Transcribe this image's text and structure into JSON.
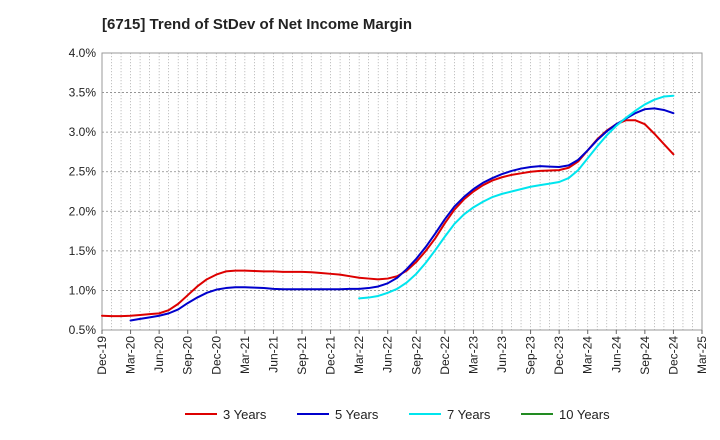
{
  "chart_data": {
    "type": "line",
    "title": "[6715]  Trend of StDev of Net Income Margin",
    "xlabel": "",
    "ylabel": "",
    "x_ticks": [
      "Dec-19",
      "Mar-20",
      "Jun-20",
      "Sep-20",
      "Dec-20",
      "Mar-21",
      "Jun-21",
      "Sep-21",
      "Dec-21",
      "Mar-22",
      "Jun-22",
      "Sep-22",
      "Dec-22",
      "Mar-23",
      "Jun-23",
      "Sep-23",
      "Dec-23",
      "Mar-24",
      "Jun-24",
      "Sep-24",
      "Dec-24",
      "Mar-25"
    ],
    "y_ticks": [
      "0.5%",
      "1.0%",
      "1.5%",
      "2.0%",
      "2.5%",
      "3.0%",
      "3.5%",
      "4.0%"
    ],
    "ylim": [
      0.5,
      4.0
    ],
    "y_unit": "%",
    "grid": true,
    "legend_position": "bottom",
    "series": [
      {
        "name": "3 Years",
        "color": "#dd0000",
        "points": [
          [
            "Dec-19",
            0.68
          ],
          [
            "Jan-20",
            0.675
          ],
          [
            "Feb-20",
            0.675
          ],
          [
            "Mar-20",
            0.68
          ],
          [
            "Apr-20",
            0.69
          ],
          [
            "May-20",
            0.7
          ],
          [
            "Jun-20",
            0.71
          ],
          [
            "Jul-20",
            0.75
          ],
          [
            "Aug-20",
            0.83
          ],
          [
            "Sep-20",
            0.94
          ],
          [
            "Oct-20",
            1.05
          ],
          [
            "Nov-20",
            1.14
          ],
          [
            "Dec-20",
            1.2
          ],
          [
            "Jan-21",
            1.24
          ],
          [
            "Feb-21",
            1.25
          ],
          [
            "Mar-21",
            1.25
          ],
          [
            "Apr-21",
            1.245
          ],
          [
            "May-21",
            1.24
          ],
          [
            "Jun-21",
            1.24
          ],
          [
            "Jul-21",
            1.235
          ],
          [
            "Aug-21",
            1.235
          ],
          [
            "Sep-21",
            1.235
          ],
          [
            "Oct-21",
            1.23
          ],
          [
            "Nov-21",
            1.22
          ],
          [
            "Dec-21",
            1.21
          ],
          [
            "Jan-22",
            1.2
          ],
          [
            "Feb-22",
            1.18
          ],
          [
            "Mar-22",
            1.16
          ],
          [
            "Apr-22",
            1.15
          ],
          [
            "May-22",
            1.14
          ],
          [
            "Jun-22",
            1.15
          ],
          [
            "Jul-22",
            1.18
          ],
          [
            "Aug-22",
            1.25
          ],
          [
            "Sep-22",
            1.36
          ],
          [
            "Oct-22",
            1.5
          ],
          [
            "Nov-22",
            1.66
          ],
          [
            "Dec-22",
            1.85
          ],
          [
            "Jan-23",
            2.02
          ],
          [
            "Feb-23",
            2.15
          ],
          [
            "Mar-23",
            2.25
          ],
          [
            "Apr-23",
            2.33
          ],
          [
            "May-23",
            2.39
          ],
          [
            "Jun-23",
            2.43
          ],
          [
            "Jul-23",
            2.46
          ],
          [
            "Aug-23",
            2.48
          ],
          [
            "Sep-23",
            2.5
          ],
          [
            "Oct-23",
            2.51
          ],
          [
            "Nov-23",
            2.515
          ],
          [
            "Dec-23",
            2.52
          ],
          [
            "Jan-24",
            2.55
          ],
          [
            "Feb-24",
            2.63
          ],
          [
            "Mar-24",
            2.77
          ],
          [
            "Apr-24",
            2.91
          ],
          [
            "May-24",
            3.02
          ],
          [
            "Jun-24",
            3.1
          ],
          [
            "Jul-24",
            3.15
          ],
          [
            "Aug-24",
            3.15
          ],
          [
            "Sep-24",
            3.1
          ],
          [
            "Oct-24",
            2.98
          ],
          [
            "Nov-24",
            2.85
          ],
          [
            "Dec-24",
            2.72
          ]
        ]
      },
      {
        "name": "5 Years",
        "color": "#0000cc",
        "points": [
          [
            "Mar-20",
            0.62
          ],
          [
            "Apr-20",
            0.64
          ],
          [
            "May-20",
            0.66
          ],
          [
            "Jun-20",
            0.68
          ],
          [
            "Jul-20",
            0.71
          ],
          [
            "Aug-20",
            0.76
          ],
          [
            "Sep-20",
            0.84
          ],
          [
            "Oct-20",
            0.91
          ],
          [
            "Nov-20",
            0.97
          ],
          [
            "Dec-20",
            1.01
          ],
          [
            "Jan-21",
            1.03
          ],
          [
            "Feb-21",
            1.04
          ],
          [
            "Mar-21",
            1.04
          ],
          [
            "Apr-21",
            1.035
          ],
          [
            "May-21",
            1.03
          ],
          [
            "Jun-21",
            1.02
          ],
          [
            "Jul-21",
            1.015
          ],
          [
            "Aug-21",
            1.015
          ],
          [
            "Sep-21",
            1.015
          ],
          [
            "Oct-21",
            1.015
          ],
          [
            "Nov-21",
            1.015
          ],
          [
            "Dec-21",
            1.015
          ],
          [
            "Jan-22",
            1.015
          ],
          [
            "Feb-22",
            1.02
          ],
          [
            "Mar-22",
            1.02
          ],
          [
            "Apr-22",
            1.03
          ],
          [
            "May-22",
            1.05
          ],
          [
            "Jun-22",
            1.09
          ],
          [
            "Jul-22",
            1.16
          ],
          [
            "Aug-22",
            1.27
          ],
          [
            "Sep-22",
            1.4
          ],
          [
            "Oct-22",
            1.55
          ],
          [
            "Nov-22",
            1.72
          ],
          [
            "Dec-22",
            1.9
          ],
          [
            "Jan-23",
            2.06
          ],
          [
            "Feb-23",
            2.18
          ],
          [
            "Mar-23",
            2.28
          ],
          [
            "Apr-23",
            2.36
          ],
          [
            "May-23",
            2.42
          ],
          [
            "Jun-23",
            2.47
          ],
          [
            "Jul-23",
            2.51
          ],
          [
            "Aug-23",
            2.54
          ],
          [
            "Sep-23",
            2.56
          ],
          [
            "Oct-23",
            2.57
          ],
          [
            "Nov-23",
            2.565
          ],
          [
            "Dec-23",
            2.56
          ],
          [
            "Jan-24",
            2.58
          ],
          [
            "Feb-24",
            2.65
          ],
          [
            "Mar-24",
            2.77
          ],
          [
            "Apr-24",
            2.9
          ],
          [
            "May-24",
            3.01
          ],
          [
            "Jun-24",
            3.1
          ],
          [
            "Jul-24",
            3.17
          ],
          [
            "Aug-24",
            3.24
          ],
          [
            "Sep-24",
            3.29
          ],
          [
            "Oct-24",
            3.3
          ],
          [
            "Nov-24",
            3.28
          ],
          [
            "Dec-24",
            3.24
          ]
        ]
      },
      {
        "name": "7 Years",
        "color": "#00e5ee",
        "points": [
          [
            "Mar-22",
            0.9
          ],
          [
            "Apr-22",
            0.91
          ],
          [
            "May-22",
            0.93
          ],
          [
            "Jun-22",
            0.97
          ],
          [
            "Jul-22",
            1.02
          ],
          [
            "Aug-22",
            1.1
          ],
          [
            "Sep-22",
            1.21
          ],
          [
            "Oct-22",
            1.35
          ],
          [
            "Nov-22",
            1.51
          ],
          [
            "Dec-22",
            1.68
          ],
          [
            "Jan-23",
            1.84
          ],
          [
            "Feb-23",
            1.96
          ],
          [
            "Mar-23",
            2.05
          ],
          [
            "Apr-23",
            2.12
          ],
          [
            "May-23",
            2.18
          ],
          [
            "Jun-23",
            2.22
          ],
          [
            "Jul-23",
            2.25
          ],
          [
            "Aug-23",
            2.28
          ],
          [
            "Sep-23",
            2.31
          ],
          [
            "Oct-23",
            2.33
          ],
          [
            "Nov-23",
            2.35
          ],
          [
            "Dec-23",
            2.37
          ],
          [
            "Jan-24",
            2.42
          ],
          [
            "Feb-24",
            2.52
          ],
          [
            "Mar-24",
            2.67
          ],
          [
            "Apr-24",
            2.82
          ],
          [
            "May-24",
            2.96
          ],
          [
            "Jun-24",
            3.08
          ],
          [
            "Jul-24",
            3.18
          ],
          [
            "Aug-24",
            3.27
          ],
          [
            "Sep-24",
            3.35
          ],
          [
            "Oct-24",
            3.41
          ],
          [
            "Nov-24",
            3.45
          ],
          [
            "Dec-24",
            3.46
          ]
        ]
      },
      {
        "name": "10 Years",
        "color": "#228b22",
        "points": []
      }
    ]
  }
}
